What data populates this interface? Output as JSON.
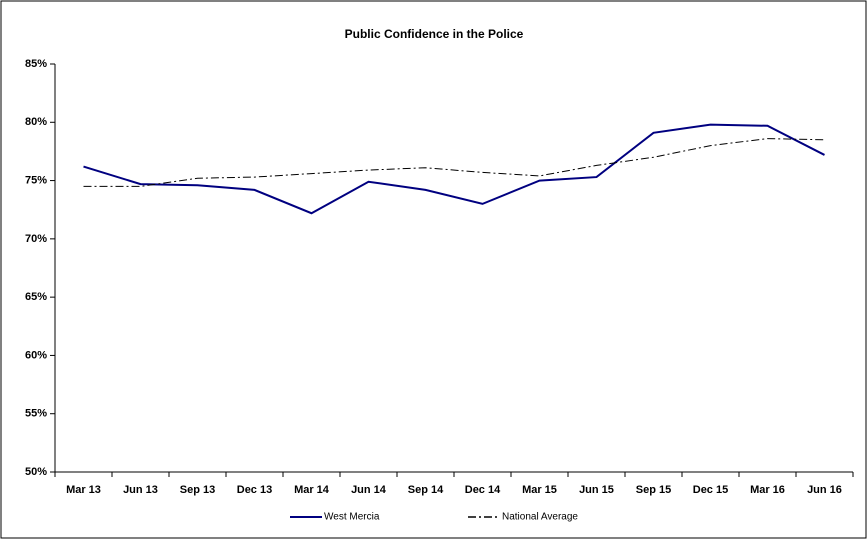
{
  "chart_data": {
    "type": "line",
    "title": "Public Confidence in the Police",
    "categories": [
      "Mar 13",
      "Jun 13",
      "Sep 13",
      "Dec 13",
      "Mar 14",
      "Jun 14",
      "Sep 14",
      "Dec 14",
      "Mar 15",
      "Jun 15",
      "Sep 15",
      "Dec 15",
      "Mar 16",
      "Jun 16"
    ],
    "series": [
      {
        "name": "West Mercia",
        "color": "#000080",
        "dash": "solid",
        "values": [
          76.2,
          74.7,
          74.6,
          74.2,
          72.2,
          74.9,
          74.2,
          73.0,
          75.0,
          75.3,
          79.1,
          79.8,
          79.7,
          77.2
        ]
      },
      {
        "name": "National Average",
        "color": "#000000",
        "dash": "dashdot",
        "values": [
          74.5,
          74.5,
          75.2,
          75.3,
          75.6,
          75.9,
          76.1,
          75.7,
          75.4,
          76.3,
          77.0,
          78.0,
          78.6,
          78.5
        ]
      }
    ],
    "ylim": [
      50,
      85
    ],
    "yticks": [
      {
        "value": 50,
        "label": "50%"
      },
      {
        "value": 55,
        "label": "55%"
      },
      {
        "value": 60,
        "label": "60%"
      },
      {
        "value": 65,
        "label": "65%"
      },
      {
        "value": 70,
        "label": "70%"
      },
      {
        "value": 75,
        "label": "75%"
      },
      {
        "value": 80,
        "label": "80%"
      },
      {
        "value": 85,
        "label": "85%"
      }
    ],
    "grid": false,
    "legend": "bottom"
  }
}
